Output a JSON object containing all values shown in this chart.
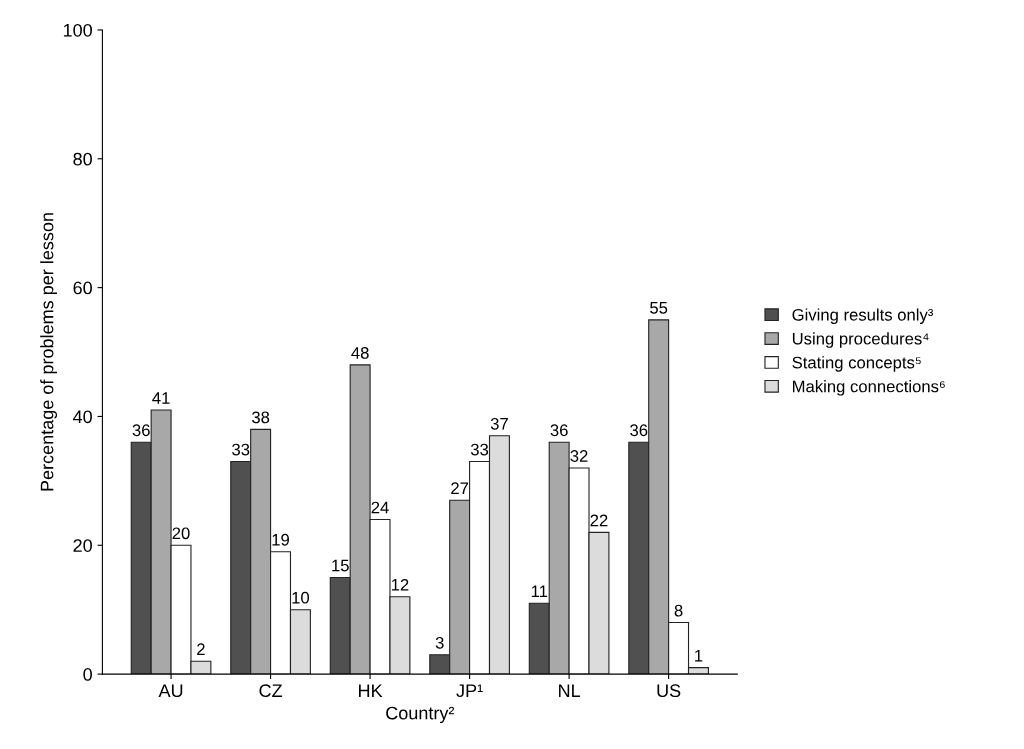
{
  "chart_data": {
    "type": "bar",
    "xlabel": "Country²",
    "ylabel": "Percentage of problems per lesson",
    "categories": [
      "AU",
      "CZ",
      "HK",
      "JP¹",
      "NL",
      "US"
    ],
    "series": [
      {
        "name": "Giving results only³",
        "color": "#505050",
        "values": [
          36,
          33,
          15,
          3,
          11,
          36
        ]
      },
      {
        "name": "Using procedures⁴",
        "color": "#a8a8a8",
        "values": [
          41,
          38,
          48,
          27,
          36,
          55
        ]
      },
      {
        "name": "Stating concepts⁵",
        "color": "#ffffff",
        "values": [
          20,
          19,
          24,
          33,
          32,
          8
        ]
      },
      {
        "name": "Making connections⁶",
        "color": "#dcdcdc",
        "values": [
          2,
          10,
          12,
          37,
          22,
          1
        ]
      }
    ],
    "ylim": [
      0,
      100
    ],
    "yticks": [
      0,
      20,
      40,
      60,
      80,
      100
    ],
    "grid": false,
    "legend": "right",
    "data_labels": true
  }
}
